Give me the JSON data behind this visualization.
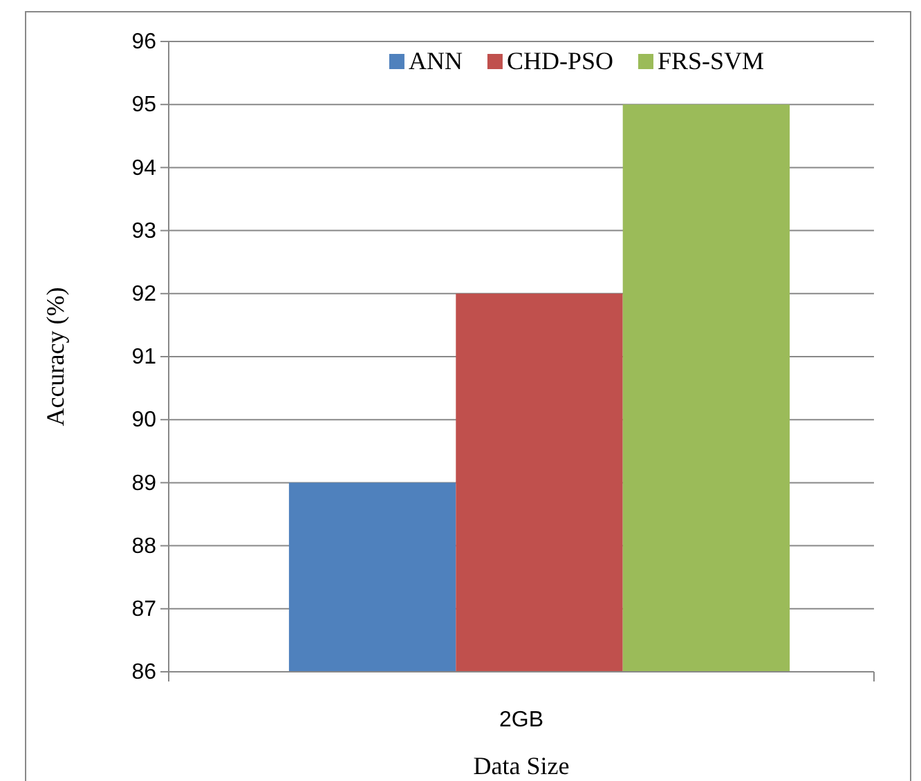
{
  "chart_data": {
    "type": "bar",
    "xlabel": "Data Size",
    "ylabel": "Accuracy (%)",
    "categories": [
      "2GB"
    ],
    "series": [
      {
        "name": "ANN",
        "color": "#4f81bd",
        "values": [
          89
        ]
      },
      {
        "name": "CHD-PSO",
        "color": "#c0504d",
        "values": [
          92
        ]
      },
      {
        "name": "FRS-SVM",
        "color": "#9bbb59",
        "values": [
          95
        ]
      }
    ],
    "ylim": [
      86,
      96
    ],
    "yticks": [
      86,
      87,
      88,
      89,
      90,
      91,
      92,
      93,
      94,
      95,
      96
    ],
    "grid": "y",
    "legend": "top"
  }
}
